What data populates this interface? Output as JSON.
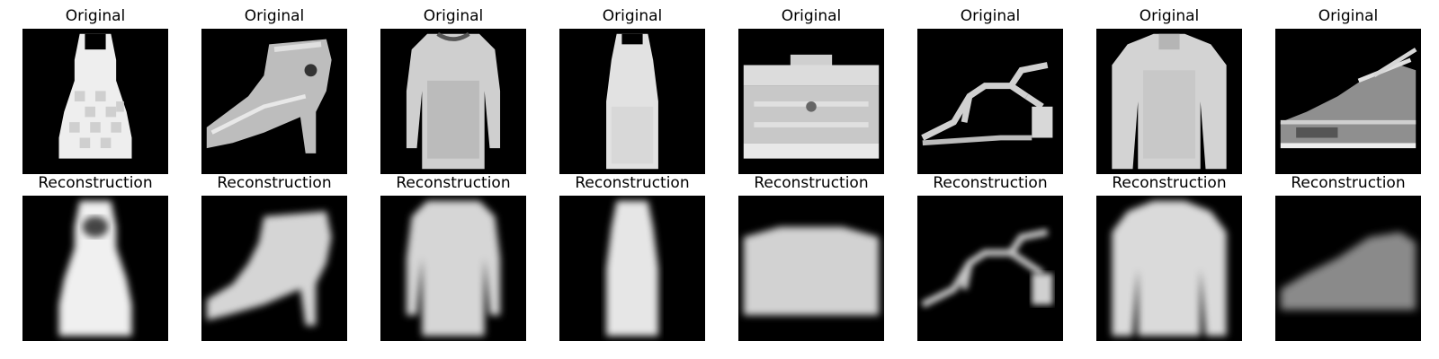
{
  "figure": {
    "rows": [
      {
        "name": "original",
        "label": "Original"
      },
      {
        "name": "reconstruction",
        "label": "Reconstruction"
      }
    ],
    "items": [
      {
        "class_icon": "dress-icon"
      },
      {
        "class_icon": "ankle-boot-icon"
      },
      {
        "class_icon": "long-dress-icon"
      },
      {
        "class_icon": "slim-dress-icon"
      },
      {
        "class_icon": "bag-icon"
      },
      {
        "class_icon": "sandal-icon"
      },
      {
        "class_icon": "pullover-icon"
      },
      {
        "class_icon": "sneaker-icon"
      }
    ],
    "colors": {
      "background": "#ffffff",
      "image_background": "#000000",
      "title_text": "#000000"
    }
  }
}
